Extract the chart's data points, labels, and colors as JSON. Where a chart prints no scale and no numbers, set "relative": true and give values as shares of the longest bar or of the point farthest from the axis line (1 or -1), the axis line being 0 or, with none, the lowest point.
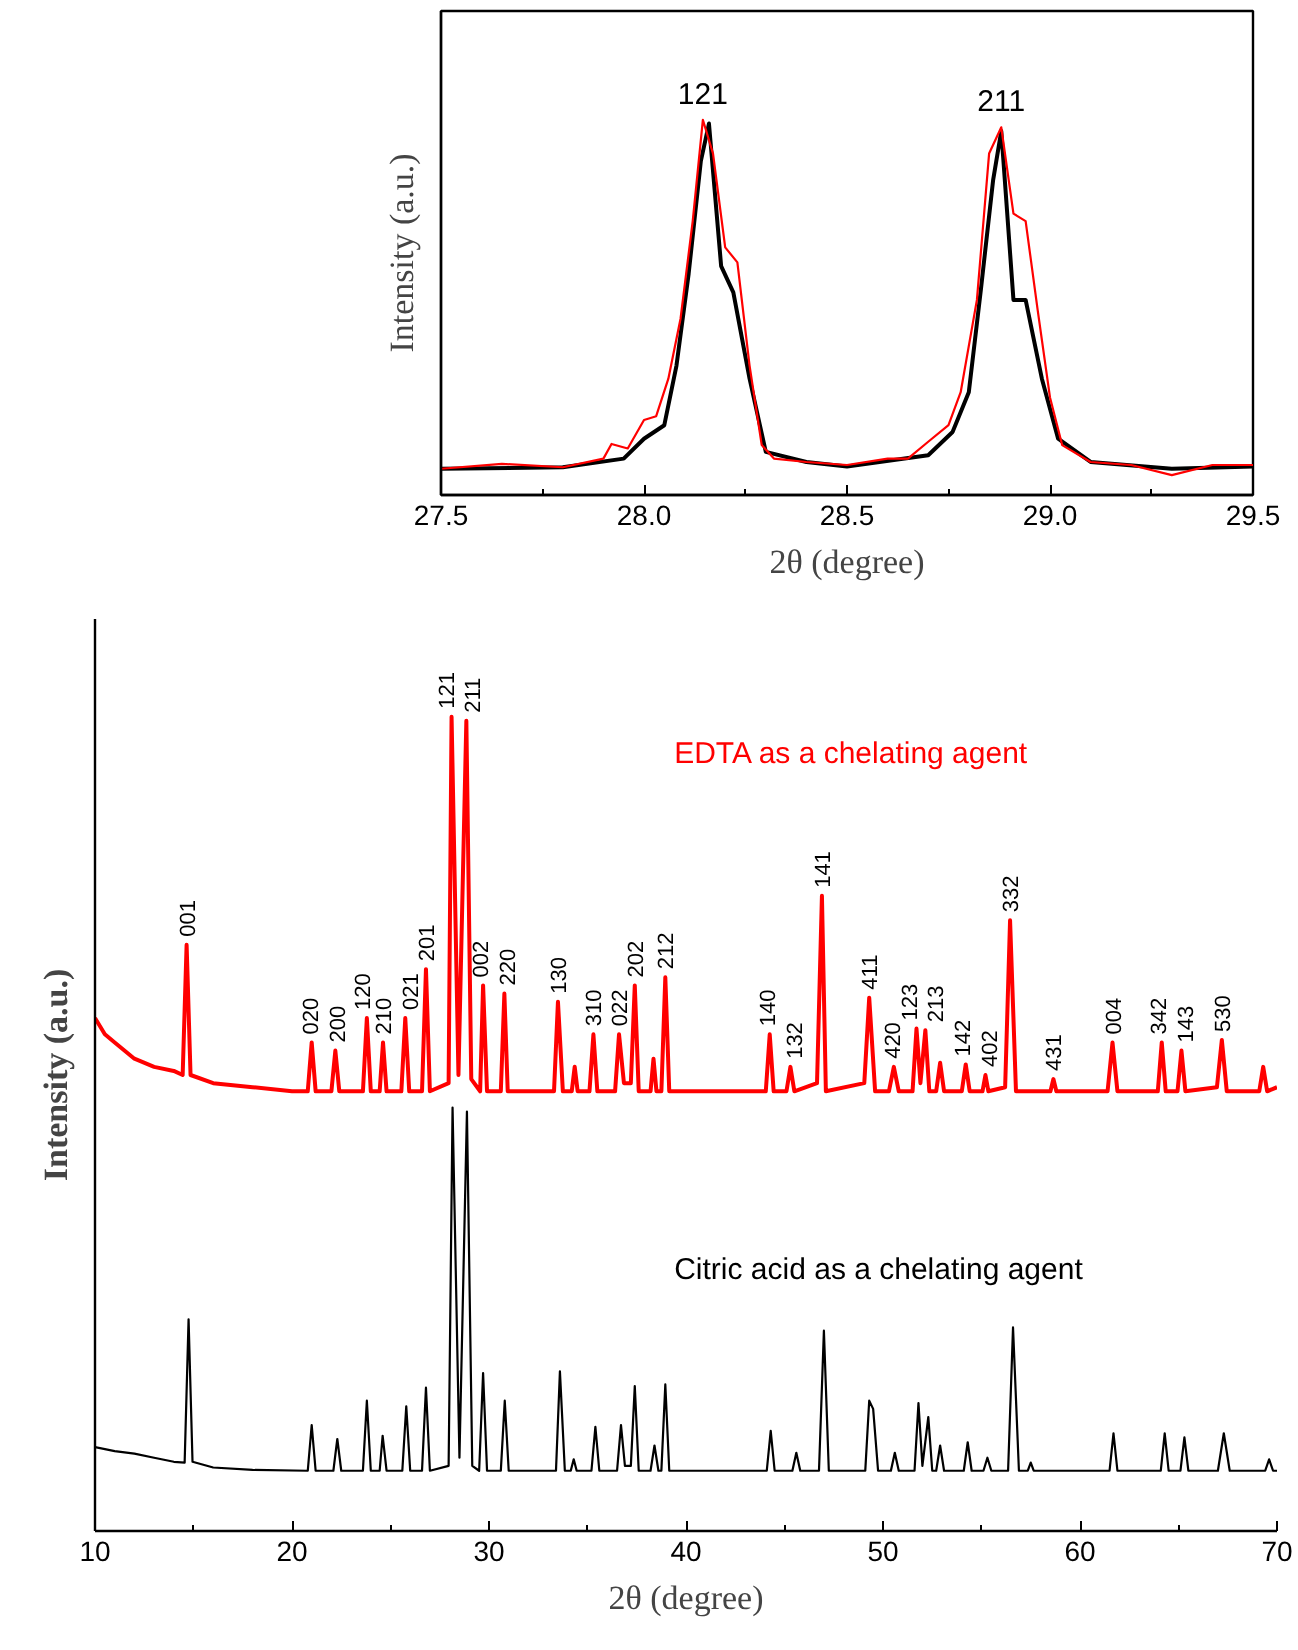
{
  "chart_data": [
    {
      "type": "line",
      "relative": true,
      "xlabel": "2θ (degree)",
      "ylabel": "Intensity (a.u.)",
      "xlim": [
        27.5,
        29.5
      ],
      "xticks": [
        27.5,
        {
          "value": 28,
          "label": "28.0"
        },
        28.5,
        {
          "value": 29,
          "label": "29.0"
        },
        29.5
      ],
      "tick_labels": "x",
      "series": [
        {
          "color": "#000000",
          "x": [
            27.5,
            27.8,
            27.95,
            28.0,
            28.05,
            28.08,
            28.11,
            28.14,
            28.16,
            28.19,
            28.22,
            28.26,
            28.3,
            28.4,
            28.5,
            28.7,
            28.76,
            28.8,
            28.83,
            28.86,
            28.88,
            28.91,
            28.94,
            28.98,
            29.02,
            29.1,
            29.3,
            29.5
          ],
          "values": [
            0.07,
            0.074,
            0.097,
            0.15,
            0.186,
            0.345,
            0.59,
            0.89,
            0.99,
            0.61,
            0.54,
            0.31,
            0.115,
            0.088,
            0.076,
            0.106,
            0.168,
            0.274,
            0.55,
            0.84,
            0.97,
            0.52,
            0.52,
            0.31,
            0.15,
            0.088,
            0.07,
            0.076
          ]
        },
        {
          "color": "#ff0000",
          "x": [
            27.5,
            27.65,
            27.8,
            27.9,
            27.92,
            27.96,
            28.0,
            28.03,
            28.06,
            28.09,
            28.12,
            28.145,
            28.17,
            28.2,
            28.23,
            28.26,
            28.29,
            28.32,
            28.4,
            28.5,
            28.6,
            28.65,
            28.7,
            28.75,
            28.78,
            28.82,
            28.85,
            28.88,
            28.91,
            28.94,
            28.97,
            29.0,
            29.03,
            29.1,
            29.2,
            29.3,
            29.4,
            29.5
          ],
          "values": [
            0.07,
            0.083,
            0.074,
            0.097,
            0.136,
            0.124,
            0.2,
            0.21,
            0.31,
            0.47,
            0.73,
            1.0,
            0.91,
            0.66,
            0.62,
            0.345,
            0.133,
            0.097,
            0.088,
            0.08,
            0.097,
            0.097,
            0.142,
            0.186,
            0.274,
            0.52,
            0.91,
            0.98,
            0.75,
            0.73,
            0.49,
            0.26,
            0.133,
            0.088,
            0.08,
            0.053,
            0.08,
            0.08
          ]
        }
      ],
      "annotations": [
        {
          "text": "121",
          "x": 28.145,
          "y": 1.0
        },
        {
          "text": "211",
          "x": 28.88,
          "y": 0.98
        }
      ]
    },
    {
      "type": "line",
      "relative": true,
      "xlabel": "2θ (degree)",
      "ylabel": "Intensity (a.u.)",
      "xlim": [
        10,
        70
      ],
      "xticks": [
        10,
        20,
        30,
        40,
        50,
        60,
        70
      ],
      "tick_labels": "x",
      "series": [
        {
          "name": "EDTA as a chelating agent",
          "color": "#ff0000",
          "x": [
            10,
            10.5,
            11,
            12,
            13,
            14,
            14.45,
            14.65,
            14.85,
            16,
            18,
            20,
            20.8,
            21.0,
            21.2,
            22.0,
            22.2,
            22.4,
            23.6,
            23.8,
            24.0,
            24.45,
            24.62,
            24.8,
            25.55,
            25.75,
            25.95,
            26.6,
            26.8,
            27.0,
            27.95,
            28.1,
            28.45,
            28.85,
            29.1,
            29.55,
            29.7,
            29.9,
            30.6,
            30.78,
            30.95,
            33.3,
            33.5,
            33.75,
            34.2,
            34.35,
            34.5,
            35.1,
            35.3,
            35.5,
            36.4,
            36.6,
            36.85,
            37.2,
            37.4,
            37.6,
            38.2,
            38.35,
            38.5,
            38.75,
            38.95,
            39.15,
            44.05,
            44.25,
            44.45,
            45.1,
            45.3,
            45.5,
            46.65,
            46.9,
            47.1,
            49.05,
            49.3,
            49.6,
            50.3,
            50.55,
            50.8,
            51.5,
            51.7,
            51.9,
            52.15,
            52.35,
            52.7,
            52.9,
            53.1,
            54.0,
            54.2,
            54.4,
            55.05,
            55.2,
            55.35,
            56.2,
            56.45,
            56.75,
            58.5,
            58.65,
            58.8,
            61.4,
            61.65,
            61.9,
            63.95,
            64.15,
            64.35,
            64.95,
            65.15,
            65.35,
            66.95,
            67.2,
            67.45,
            69.1,
            69.3,
            69.5,
            70
          ],
          "values": [
            0.63,
            0.61,
            0.6,
            0.58,
            0.57,
            0.565,
            0.56,
            0.72,
            0.56,
            0.55,
            0.545,
            0.54,
            0.54,
            0.6,
            0.54,
            0.54,
            0.59,
            0.54,
            0.54,
            0.63,
            0.54,
            0.54,
            0.6,
            0.54,
            0.54,
            0.63,
            0.54,
            0.54,
            0.69,
            0.54,
            0.55,
            1.0,
            0.56,
            0.995,
            0.555,
            0.54,
            0.67,
            0.54,
            0.54,
            0.66,
            0.54,
            0.54,
            0.65,
            0.54,
            0.54,
            0.57,
            0.54,
            0.54,
            0.61,
            0.54,
            0.54,
            0.61,
            0.55,
            0.55,
            0.67,
            0.54,
            0.54,
            0.58,
            0.54,
            0.54,
            0.68,
            0.54,
            0.54,
            0.61,
            0.54,
            0.54,
            0.57,
            0.54,
            0.55,
            0.78,
            0.54,
            0.55,
            0.655,
            0.54,
            0.54,
            0.57,
            0.54,
            0.54,
            0.617,
            0.55,
            0.615,
            0.54,
            0.54,
            0.575,
            0.54,
            0.54,
            0.573,
            0.54,
            0.54,
            0.56,
            0.54,
            0.545,
            0.75,
            0.54,
            0.54,
            0.555,
            0.54,
            0.54,
            0.6,
            0.54,
            0.54,
            0.6,
            0.54,
            0.54,
            0.59,
            0.54,
            0.545,
            0.603,
            0.54,
            0.54,
            0.57,
            0.54,
            0.545
          ]
        },
        {
          "name": "Citric acid as a chelating agent",
          "color": "#000000",
          "x": [
            10,
            11,
            12,
            13,
            14,
            14.55,
            14.75,
            14.95,
            16,
            18,
            20.8,
            21.0,
            21.2,
            22.1,
            22.3,
            22.5,
            23.6,
            23.8,
            24.0,
            24.45,
            24.6,
            24.8,
            25.6,
            25.8,
            26.0,
            26.6,
            26.8,
            27.0,
            27.95,
            28.15,
            28.5,
            28.88,
            29.15,
            29.5,
            29.7,
            29.9,
            30.6,
            30.8,
            31.0,
            33.4,
            33.6,
            33.85,
            34.15,
            34.3,
            34.45,
            35.2,
            35.4,
            35.6,
            36.5,
            36.7,
            36.9,
            37.2,
            37.4,
            37.6,
            38.2,
            38.4,
            38.6,
            38.75,
            38.95,
            39.15,
            44.1,
            44.3,
            44.5,
            45.4,
            45.6,
            45.8,
            46.75,
            47.0,
            47.25,
            49.1,
            49.3,
            49.5,
            49.75,
            50.4,
            50.6,
            50.8,
            51.6,
            51.8,
            52.0,
            52.3,
            52.5,
            52.7,
            52.9,
            53.1,
            54.1,
            54.3,
            54.5,
            55.1,
            55.3,
            55.5,
            56.35,
            56.6,
            56.9,
            57.35,
            57.5,
            57.65,
            61.5,
            61.7,
            61.9,
            64.1,
            64.3,
            64.5,
            65.1,
            65.3,
            65.5,
            67.0,
            67.3,
            67.6,
            69.4,
            69.6,
            69.8,
            70
          ],
          "values": [
            0.103,
            0.098,
            0.095,
            0.09,
            0.085,
            0.084,
            0.26,
            0.085,
            0.078,
            0.075,
            0.074,
            0.13,
            0.074,
            0.074,
            0.113,
            0.074,
            0.074,
            0.16,
            0.074,
            0.074,
            0.117,
            0.074,
            0.074,
            0.153,
            0.074,
            0.074,
            0.176,
            0.074,
            0.08,
            0.52,
            0.09,
            0.515,
            0.08,
            0.074,
            0.194,
            0.074,
            0.074,
            0.16,
            0.074,
            0.074,
            0.196,
            0.074,
            0.074,
            0.088,
            0.074,
            0.074,
            0.128,
            0.074,
            0.074,
            0.13,
            0.08,
            0.08,
            0.178,
            0.074,
            0.074,
            0.105,
            0.074,
            0.074,
            0.18,
            0.074,
            0.074,
            0.123,
            0.074,
            0.074,
            0.096,
            0.074,
            0.074,
            0.246,
            0.074,
            0.074,
            0.16,
            0.15,
            0.074,
            0.074,
            0.096,
            0.074,
            0.074,
            0.157,
            0.08,
            0.14,
            0.074,
            0.074,
            0.105,
            0.074,
            0.074,
            0.109,
            0.074,
            0.074,
            0.09,
            0.074,
            0.074,
            0.25,
            0.074,
            0.074,
            0.084,
            0.074,
            0.074,
            0.12,
            0.074,
            0.074,
            0.12,
            0.074,
            0.074,
            0.115,
            0.074,
            0.074,
            0.12,
            0.074,
            0.074,
            0.088,
            0.074,
            0.074
          ]
        }
      ],
      "annotations": [
        {
          "text": "001",
          "x": 14.65,
          "y": 0.72
        },
        {
          "text": "020",
          "x": 21.0,
          "y": 0.6
        },
        {
          "text": "200",
          "x": 22.2,
          "y": 0.59
        },
        {
          "text": "120",
          "x": 23.8,
          "y": 0.63
        },
        {
          "text": "210",
          "x": 24.62,
          "y": 0.6
        },
        {
          "text": "021",
          "x": 25.75,
          "y": 0.63
        },
        {
          "text": "201",
          "x": 26.8,
          "y": 0.69
        },
        {
          "text": "121",
          "x": 28.1,
          "y": 1.0
        },
        {
          "text": "211",
          "x": 28.85,
          "y": 0.995
        },
        {
          "text": "002",
          "x": 29.7,
          "y": 0.67
        },
        {
          "text": "220",
          "x": 30.78,
          "y": 0.66
        },
        {
          "text": "130",
          "x": 33.5,
          "y": 0.65
        },
        {
          "text": "310",
          "x": 35.3,
          "y": 0.61
        },
        {
          "text": "022",
          "x": 36.6,
          "y": 0.61
        },
        {
          "text": "202",
          "x": 37.4,
          "y": 0.67
        },
        {
          "text": "212",
          "x": 38.95,
          "y": 0.68
        },
        {
          "text": "140",
          "x": 44.25,
          "y": 0.61
        },
        {
          "text": "132",
          "x": 45.3,
          "y": 0.57
        },
        {
          "text": "141",
          "x": 46.9,
          "y": 0.78
        },
        {
          "text": "411",
          "x": 49.3,
          "y": 0.655
        },
        {
          "text": "420",
          "x": 50.55,
          "y": 0.57
        },
        {
          "text": "123",
          "x": 51.7,
          "y": 0.617
        },
        {
          "text": "213",
          "x": 52.15,
          "y": 0.615
        },
        {
          "text": "142",
          "x": 54.2,
          "y": 0.573
        },
        {
          "text": "402",
          "x": 55.2,
          "y": 0.56
        },
        {
          "text": "332",
          "x": 56.45,
          "y": 0.75
        },
        {
          "text": "431",
          "x": 58.65,
          "y": 0.555
        },
        {
          "text": "004",
          "x": 61.65,
          "y": 0.6
        },
        {
          "text": "342",
          "x": 64.15,
          "y": 0.6
        },
        {
          "text": "143",
          "x": 65.15,
          "y": 0.59
        },
        {
          "text": "530",
          "x": 67.2,
          "y": 0.603
        }
      ]
    }
  ]
}
